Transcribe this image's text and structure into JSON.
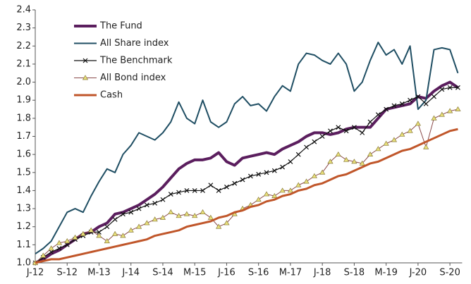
{
  "chart_data": {
    "type": "line",
    "categories": [
      "J-12",
      null,
      null,
      null,
      "S-12",
      null,
      null,
      null,
      "M-13",
      null,
      null,
      null,
      "J-14",
      null,
      null,
      null,
      "S-14",
      null,
      null,
      null,
      "M-15",
      null,
      null,
      null,
      "J-16",
      null,
      null,
      null,
      "S-16",
      null,
      null,
      null,
      "M-17",
      null,
      null,
      null,
      "J-18",
      null,
      null,
      null,
      "S-18",
      null,
      null,
      null,
      "M-19",
      null,
      null,
      null,
      "J-20",
      null,
      null,
      null,
      "S-20",
      null
    ],
    "ylim": [
      1.0,
      2.4
    ],
    "yticks": [
      {
        "value": 1.0,
        "label": "1.0"
      },
      1.1,
      1.2,
      1.3,
      1.4,
      1.5,
      1.6,
      1.7,
      1.8,
      1.9,
      {
        "value": 2.0,
        "label": "2.0"
      },
      2.1,
      2.2,
      2.3,
      2.4
    ],
    "grid": false,
    "legend": "top-left",
    "series": [
      {
        "name": "The Fund",
        "color": "#5b1e5e",
        "width": 4,
        "marker": "none",
        "values": [
          1.0,
          1.02,
          1.05,
          1.07,
          1.1,
          1.13,
          1.16,
          1.17,
          1.2,
          1.22,
          1.27,
          1.28,
          1.3,
          1.32,
          1.35,
          1.38,
          1.42,
          1.47,
          1.52,
          1.55,
          1.57,
          1.57,
          1.58,
          1.61,
          1.56,
          1.54,
          1.58,
          1.59,
          1.6,
          1.61,
          1.6,
          1.63,
          1.65,
          1.67,
          1.7,
          1.72,
          1.72,
          1.71,
          1.72,
          1.74,
          1.75,
          1.75,
          1.75,
          1.8,
          1.85,
          1.86,
          1.87,
          1.88,
          1.92,
          1.91,
          1.95,
          1.98,
          2.0,
          1.97
        ]
      },
      {
        "name": "All Share index",
        "color": "#1f4e63",
        "width": 2,
        "marker": "none",
        "values": [
          1.05,
          1.08,
          1.12,
          1.2,
          1.28,
          1.3,
          1.28,
          1.37,
          1.45,
          1.52,
          1.5,
          1.6,
          1.65,
          1.72,
          1.7,
          1.68,
          1.72,
          1.78,
          1.89,
          1.8,
          1.77,
          1.9,
          1.78,
          1.75,
          1.78,
          1.88,
          1.92,
          1.87,
          1.88,
          1.84,
          1.92,
          1.98,
          1.95,
          2.1,
          2.16,
          2.15,
          2.12,
          2.1,
          2.16,
          2.1,
          1.95,
          2.0,
          2.12,
          2.22,
          2.15,
          2.18,
          2.1,
          2.2,
          1.85,
          1.9,
          2.18,
          2.19,
          2.18,
          2.05
        ]
      },
      {
        "name": "The Benchmark",
        "color": "#111111",
        "width": 1.2,
        "marker": "x",
        "values": [
          1.0,
          1.03,
          1.06,
          1.08,
          1.1,
          1.13,
          1.15,
          1.17,
          1.17,
          1.2,
          1.24,
          1.27,
          1.28,
          1.3,
          1.32,
          1.33,
          1.35,
          1.38,
          1.39,
          1.4,
          1.4,
          1.4,
          1.43,
          1.4,
          1.42,
          1.44,
          1.46,
          1.48,
          1.49,
          1.5,
          1.51,
          1.53,
          1.56,
          1.6,
          1.64,
          1.67,
          1.7,
          1.73,
          1.75,
          1.73,
          1.75,
          1.72,
          1.78,
          1.82,
          1.85,
          1.87,
          1.88,
          1.9,
          1.92,
          1.88,
          1.92,
          1.96,
          1.97,
          1.97
        ]
      },
      {
        "name": "All Bond index",
        "color": "#8a4a4a",
        "width": 1,
        "marker": "triangle",
        "values": [
          1.0,
          1.04,
          1.08,
          1.11,
          1.12,
          1.14,
          1.16,
          1.18,
          1.15,
          1.12,
          1.16,
          1.15,
          1.18,
          1.2,
          1.22,
          1.24,
          1.25,
          1.28,
          1.26,
          1.27,
          1.26,
          1.28,
          1.25,
          1.2,
          1.22,
          1.27,
          1.3,
          1.32,
          1.35,
          1.38,
          1.37,
          1.4,
          1.4,
          1.43,
          1.45,
          1.48,
          1.5,
          1.56,
          1.6,
          1.57,
          1.56,
          1.55,
          1.6,
          1.63,
          1.66,
          1.68,
          1.71,
          1.73,
          1.77,
          1.64,
          1.8,
          1.82,
          1.84,
          1.85
        ]
      },
      {
        "name": "Cash",
        "color": "#c0562a",
        "width": 3,
        "marker": "none",
        "values": [
          1.0,
          1.01,
          1.02,
          1.02,
          1.03,
          1.04,
          1.05,
          1.06,
          1.07,
          1.08,
          1.09,
          1.1,
          1.11,
          1.12,
          1.13,
          1.15,
          1.16,
          1.17,
          1.18,
          1.2,
          1.21,
          1.22,
          1.23,
          1.25,
          1.26,
          1.28,
          1.29,
          1.31,
          1.32,
          1.34,
          1.35,
          1.37,
          1.38,
          1.4,
          1.41,
          1.43,
          1.44,
          1.46,
          1.48,
          1.49,
          1.51,
          1.53,
          1.55,
          1.56,
          1.58,
          1.6,
          1.62,
          1.63,
          1.65,
          1.67,
          1.69,
          1.71,
          1.73,
          1.74
        ]
      }
    ]
  }
}
